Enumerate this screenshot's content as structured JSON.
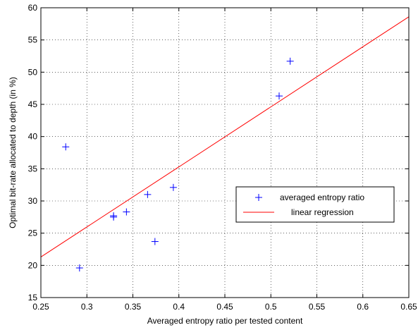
{
  "chart_data": {
    "type": "scatter",
    "title": "",
    "xlabel": "Averaged entropy ratio per tested content",
    "ylabel": "Optimal bit-rate allocated to depth (in %)",
    "xlim": [
      0.25,
      0.65
    ],
    "ylim": [
      15,
      60
    ],
    "xticks": [
      0.25,
      0.3,
      0.35,
      0.4,
      0.45,
      0.5,
      0.55,
      0.6,
      0.65
    ],
    "xtick_labels": [
      "0.25",
      "0.3",
      "0.35",
      "0.4",
      "0.45",
      "0.5",
      "0.55",
      "0.6",
      "0.65"
    ],
    "yticks": [
      15,
      20,
      25,
      30,
      35,
      40,
      45,
      50,
      55,
      60
    ],
    "ytick_labels": [
      "15",
      "20",
      "25",
      "30",
      "35",
      "40",
      "45",
      "50",
      "55",
      "60"
    ],
    "grid": true,
    "legend_position": "center-right",
    "series": [
      {
        "name": "averaged entropy ratio",
        "kind": "scatter",
        "marker": "+",
        "color": "#0000ff",
        "x": [
          0.277,
          0.292,
          0.329,
          0.329,
          0.343,
          0.366,
          0.374,
          0.394,
          0.509,
          0.521
        ],
        "y": [
          38.4,
          19.6,
          27.7,
          27.5,
          28.3,
          31.0,
          23.7,
          32.1,
          46.3,
          51.7
        ]
      },
      {
        "name": "linear regression",
        "kind": "line",
        "color": "#ff0000",
        "x": [
          0.25,
          0.65
        ],
        "y": [
          21.3,
          58.6
        ]
      }
    ]
  }
}
